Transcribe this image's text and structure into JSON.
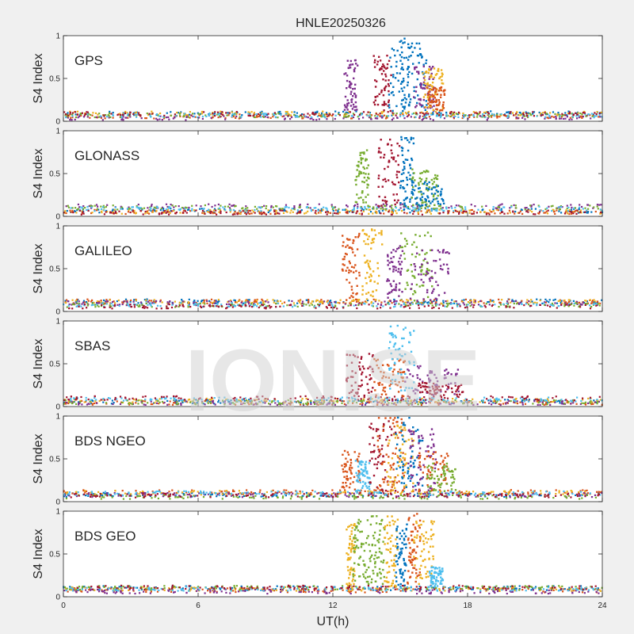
{
  "title": "HNLE20250326",
  "watermark": "IONISE",
  "colors": [
    "#0072bd",
    "#d95319",
    "#edb120",
    "#7e2f8e",
    "#77ac30",
    "#4dbeee",
    "#a2142f"
  ],
  "chart_data": {
    "type": "scatter",
    "title": "HNLE20250326",
    "xlabel": "UT(h)",
    "ylabel": "S4 Index",
    "xlim": [
      0,
      24
    ],
    "ylim": [
      0,
      1
    ],
    "x_ticks": [
      "0",
      "6",
      "12",
      "18",
      "24"
    ],
    "y_ticks": [
      "0",
      "0.5",
      "1"
    ],
    "panels": [
      {
        "label": "GPS",
        "bursts": [
          {
            "t0": 12.5,
            "t1": 13.1,
            "max": 0.72,
            "color": 3
          },
          {
            "t0": 13.8,
            "t1": 14.6,
            "max": 0.78,
            "color": 6
          },
          {
            "t0": 14.5,
            "t1": 15.4,
            "max": 0.98,
            "color": 0
          },
          {
            "t0": 15.0,
            "t1": 16.2,
            "max": 0.95,
            "color": 0
          },
          {
            "t0": 15.6,
            "t1": 16.5,
            "max": 0.65,
            "color": 3
          },
          {
            "t0": 16.0,
            "t1": 17.0,
            "max": 0.62,
            "color": 2
          },
          {
            "t0": 16.2,
            "t1": 17.0,
            "max": 0.4,
            "color": 1
          }
        ]
      },
      {
        "label": "GLONASS",
        "bursts": [
          {
            "t0": 13.0,
            "t1": 13.6,
            "max": 0.78,
            "color": 4
          },
          {
            "t0": 14.0,
            "t1": 15.0,
            "max": 0.9,
            "color": 6
          },
          {
            "t0": 15.0,
            "t1": 15.6,
            "max": 0.95,
            "color": 0
          },
          {
            "t0": 15.5,
            "t1": 16.7,
            "max": 0.55,
            "color": 4
          },
          {
            "t0": 15.5,
            "t1": 17.0,
            "max": 0.4,
            "color": 0
          }
        ]
      },
      {
        "label": "GALILEO",
        "bursts": [
          {
            "t0": 12.4,
            "t1": 13.2,
            "max": 0.92,
            "color": 1
          },
          {
            "t0": 13.3,
            "t1": 14.2,
            "max": 0.97,
            "color": 2
          },
          {
            "t0": 14.4,
            "t1": 15.1,
            "max": 0.78,
            "color": 3
          },
          {
            "t0": 15.0,
            "t1": 16.5,
            "max": 0.95,
            "color": 4
          },
          {
            "t0": 15.4,
            "t1": 17.2,
            "max": 0.72,
            "color": 3
          }
        ]
      },
      {
        "label": "SBAS",
        "bursts": [
          {
            "t0": 12.6,
            "t1": 13.8,
            "max": 0.65,
            "color": 6
          },
          {
            "t0": 13.8,
            "t1": 15.2,
            "max": 0.6,
            "color": 1
          },
          {
            "t0": 14.5,
            "t1": 15.7,
            "max": 0.98,
            "color": 5
          },
          {
            "t0": 15.2,
            "t1": 17.6,
            "max": 0.48,
            "color": 3
          },
          {
            "t0": 15.8,
            "t1": 17.8,
            "max": 0.28,
            "color": 6
          }
        ]
      },
      {
        "label": "BDS NGEO",
        "bursts": [
          {
            "t0": 12.4,
            "t1": 13.2,
            "max": 0.6,
            "color": 1
          },
          {
            "t0": 13.0,
            "t1": 13.7,
            "max": 0.48,
            "color": 5
          },
          {
            "t0": 13.6,
            "t1": 14.8,
            "max": 0.95,
            "color": 6
          },
          {
            "t0": 14.0,
            "t1": 15.2,
            "max": 0.99,
            "color": 1
          },
          {
            "t0": 14.4,
            "t1": 15.6,
            "max": 0.9,
            "color": 2
          },
          {
            "t0": 14.8,
            "t1": 16.0,
            "max": 0.99,
            "color": 0
          },
          {
            "t0": 15.3,
            "t1": 16.6,
            "max": 0.85,
            "color": 3
          },
          {
            "t0": 15.8,
            "t1": 17.2,
            "max": 0.6,
            "color": 1
          },
          {
            "t0": 16.2,
            "t1": 17.5,
            "max": 0.45,
            "color": 4
          }
        ]
      },
      {
        "label": "BDS GEO",
        "bursts": [
          {
            "t0": 12.6,
            "t1": 13.0,
            "max": 0.88,
            "color": 2
          },
          {
            "t0": 12.9,
            "t1": 13.6,
            "max": 0.9,
            "color": 4
          },
          {
            "t0": 13.6,
            "t1": 14.3,
            "max": 0.95,
            "color": 4
          },
          {
            "t0": 14.3,
            "t1": 14.9,
            "max": 0.95,
            "color": 2
          },
          {
            "t0": 14.8,
            "t1": 15.3,
            "max": 0.85,
            "color": 0
          },
          {
            "t0": 15.3,
            "t1": 15.9,
            "max": 0.97,
            "color": 1
          },
          {
            "t0": 15.6,
            "t1": 16.5,
            "max": 0.9,
            "color": 2
          },
          {
            "t0": 16.3,
            "t1": 16.9,
            "max": 0.35,
            "color": 5
          }
        ]
      }
    ]
  }
}
